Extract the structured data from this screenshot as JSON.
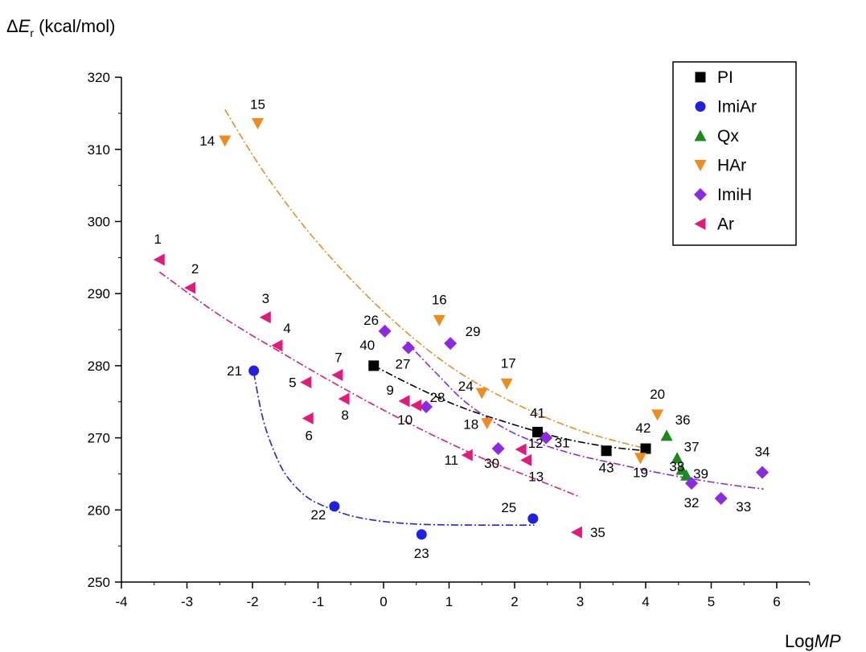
{
  "chart_data": {
    "type": "scatter",
    "xlabel": {
      "prefix": "Log",
      "italic": "MP"
    },
    "ylabel": {
      "symbol": "Δ",
      "italic": "E",
      "sub": "r",
      "rest": " (kcal/mol)"
    },
    "xlim": [
      -4,
      6.5
    ],
    "ylim": [
      250,
      320
    ],
    "xticks": [
      -4,
      -3,
      -2,
      -1,
      0,
      1,
      2,
      3,
      4,
      5,
      6
    ],
    "yticks": [
      250,
      260,
      270,
      280,
      290,
      300,
      310,
      320
    ],
    "legend_position": "top-right",
    "series": [
      {
        "name": "PI",
        "marker": "square",
        "color": "#000000",
        "points": [
          {
            "label": "40",
            "x": -0.15,
            "y": 280.0
          },
          {
            "label": "41",
            "x": 2.35,
            "y": 270.8
          },
          {
            "label": "43",
            "x": 3.4,
            "y": 268.2
          },
          {
            "label": "42",
            "x": 4.0,
            "y": 268.5
          }
        ],
        "fit": {
          "color": "#000000",
          "x": [
            -0.15,
            0.5,
            1.2,
            2.0,
            2.7,
            3.4,
            4.0
          ],
          "y": [
            280.0,
            277.0,
            274.2,
            271.8,
            270.0,
            268.8,
            268.2
          ]
        }
      },
      {
        "name": "ImiAr",
        "marker": "circle",
        "color": "#1f1fe6",
        "points": [
          {
            "label": "21",
            "x": -1.98,
            "y": 279.3
          },
          {
            "label": "22",
            "x": -0.75,
            "y": 260.5
          },
          {
            "label": "23",
            "x": 0.58,
            "y": 256.6
          },
          {
            "label": "25",
            "x": 2.28,
            "y": 258.8
          }
        ],
        "fit": {
          "color": "#1f1fe6",
          "x": [
            -1.98,
            -1.85,
            -1.7,
            -1.5,
            -1.2,
            -0.9,
            -0.5,
            0.0,
            0.6,
            1.4,
            2.3
          ],
          "y": [
            279.0,
            273.0,
            268.8,
            265.0,
            262.0,
            260.5,
            259.2,
            258.4,
            258.0,
            257.9,
            257.9
          ]
        }
      },
      {
        "name": "Qx",
        "marker": "triangle-up",
        "color": "#1a8a1a",
        "points": [
          {
            "label": "36",
            "x": 4.32,
            "y": 270.3
          },
          {
            "label": "37",
            "x": 4.48,
            "y": 267.2
          },
          {
            "label": "38",
            "x": 4.55,
            "y": 265.6
          },
          {
            "label": "39",
            "x": 4.62,
            "y": 264.8
          }
        ]
      },
      {
        "name": "HAr",
        "marker": "triangle-down",
        "color": "#f08c1e",
        "points": [
          {
            "label": "14",
            "x": -2.42,
            "y": 311.2
          },
          {
            "label": "15",
            "x": -1.92,
            "y": 313.6
          },
          {
            "label": "16",
            "x": 0.85,
            "y": 286.3
          },
          {
            "label": "17",
            "x": 1.88,
            "y": 277.5
          },
          {
            "label": "24",
            "x": 1.5,
            "y": 276.2
          },
          {
            "label": "18",
            "x": 1.58,
            "y": 272.0
          },
          {
            "label": "20",
            "x": 4.18,
            "y": 273.2
          },
          {
            "label": "19",
            "x": 3.92,
            "y": 267.2
          }
        ],
        "fit": {
          "color": "#f08c1e",
          "x": [
            -2.42,
            -1.8,
            -1.0,
            0.0,
            1.0,
            2.0,
            3.0,
            4.0
          ],
          "y": [
            315.5,
            306.5,
            297.0,
            287.5,
            280.0,
            274.8,
            271.0,
            268.5
          ]
        }
      },
      {
        "name": "ImiH",
        "marker": "diamond",
        "color": "#8c28e6",
        "points": [
          {
            "label": "26",
            "x": 0.02,
            "y": 284.8
          },
          {
            "label": "27",
            "x": 0.38,
            "y": 282.5
          },
          {
            "label": "29",
            "x": 1.02,
            "y": 283.1
          },
          {
            "label": "28",
            "x": 0.65,
            "y": 274.3
          },
          {
            "label": "30",
            "x": 1.75,
            "y": 268.5
          },
          {
            "label": "31",
            "x": 2.48,
            "y": 270.0
          },
          {
            "label": "32",
            "x": 4.7,
            "y": 263.7
          },
          {
            "label": "33",
            "x": 5.15,
            "y": 261.6
          },
          {
            "label": "34",
            "x": 5.78,
            "y": 265.2
          }
        ],
        "fit": {
          "color": "#8c28e6",
          "x": [
            0.35,
            0.8,
            1.3,
            2.0,
            2.8,
            3.6,
            4.4,
            5.2,
            5.8
          ],
          "y": [
            283.3,
            279.0,
            274.6,
            270.6,
            268.0,
            266.3,
            264.8,
            263.6,
            262.9
          ]
        }
      },
      {
        "name": "Ar",
        "marker": "triangle-left",
        "color": "#e6197a",
        "points": [
          {
            "label": "1",
            "x": -3.42,
            "y": 294.7
          },
          {
            "label": "2",
            "x": -2.95,
            "y": 290.8
          },
          {
            "label": "3",
            "x": -1.8,
            "y": 286.7
          },
          {
            "label": "4",
            "x": -1.62,
            "y": 282.8
          },
          {
            "label": "5",
            "x": -1.18,
            "y": 277.7
          },
          {
            "label": "7",
            "x": -0.7,
            "y": 278.7
          },
          {
            "label": "8",
            "x": -0.6,
            "y": 275.4
          },
          {
            "label": "6",
            "x": -1.15,
            "y": 272.7
          },
          {
            "label": "9",
            "x": 0.32,
            "y": 275.1
          },
          {
            "label": "10",
            "x": 0.5,
            "y": 274.5
          },
          {
            "label": "11",
            "x": 1.28,
            "y": 267.6
          },
          {
            "label": "12",
            "x": 2.1,
            "y": 268.4
          },
          {
            "label": "13",
            "x": 2.18,
            "y": 266.9
          },
          {
            "label": "35",
            "x": 2.95,
            "y": 256.9
          }
        ],
        "fit": {
          "color": "#e6197a",
          "x": [
            -3.42,
            -2.5,
            -1.5,
            -0.5,
            0.5,
            1.5,
            2.2,
            3.0
          ],
          "y": [
            293.0,
            287.0,
            281.5,
            276.3,
            271.5,
            267.2,
            264.7,
            261.8
          ]
        }
      }
    ]
  }
}
